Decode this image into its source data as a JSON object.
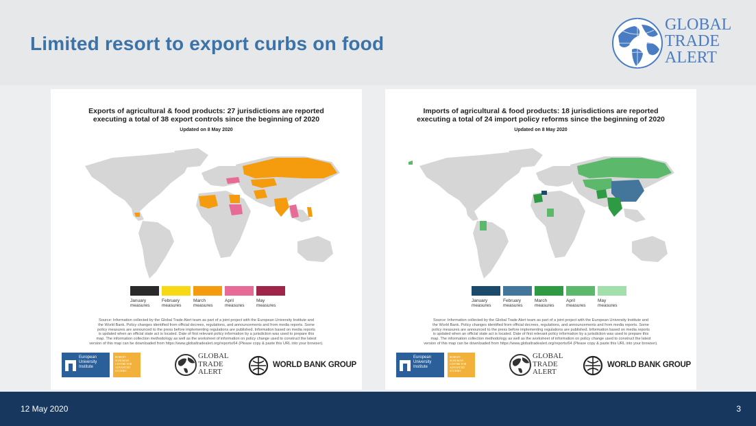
{
  "slide": {
    "title": "Limited resort to export curbs on food",
    "date": "12 May 2020",
    "page_number": "3",
    "brand_lines": [
      "GLOBAL",
      "TRADE",
      "ALERT"
    ]
  },
  "panels": [
    {
      "title_line1": "Exports of agricultural & food products: 27 jurisdictions are reported",
      "title_line2": "executing a total of 38 export controls since the beginning of 2020",
      "updated": "Updated on 8 May 2020",
      "legend": [
        {
          "line1": "January",
          "line2": "measures",
          "color": "#2a2a2a"
        },
        {
          "line1": "February",
          "line2": "measures",
          "color": "#f7d916"
        },
        {
          "line1": "March",
          "line2": "measures",
          "color": "#f59b0e"
        },
        {
          "line1": "April",
          "line2": "measures",
          "color": "#e86a97"
        },
        {
          "line1": "May",
          "line2": "measures",
          "color": "#a0254a"
        }
      ],
      "source_lines": [
        "Source: Information collected by the Global Trade Alert team as part of a joint project with the European University Institute and",
        "the World Bank. Policy changes identified from official decrees, regulations, and announcements and from media reports. Some",
        "policy measures are announced to the press before implementing regulations are published. Information based on media reports",
        "is updated when an official state act is located. Date of first relevant policy information by a jurisdiction was used to prepare this",
        "map. The information collection methodology as well as the worksheet of information on policy change used to construct the latest",
        "version of this map can be downloaded from https://www.globaltradealert.org/reports/64 (Please copy & paste this URL into your browser)."
      ]
    },
    {
      "title_line1": "Imports of agricultural & food products: 18 jurisdictions are reported",
      "title_line2": "executing a total of 24 import policy reforms since the beginning of 2020",
      "updated": "Updated on 8 May 2020",
      "legend": [
        {
          "line1": "January",
          "line2": "measures",
          "color": "#1c4a6b"
        },
        {
          "line1": "February",
          "line2": "measures",
          "color": "#44769b"
        },
        {
          "line1": "March",
          "line2": "measures",
          "color": "#2e9a43"
        },
        {
          "line1": "April",
          "line2": "measures",
          "color": "#5cb86a"
        },
        {
          "line1": "May",
          "line2": "measures",
          "color": "#a3dfab"
        }
      ],
      "source_lines": [
        "Source: Information collected by the Global Trade Alert team as part of a joint project with the European University Institute and",
        "the World Bank. Policy changes identified from official decrees, regulations, and announcements and from media reports. Some",
        "policy measures are announced to the press before implementing regulations are published. Information based on media reports",
        "is updated when an official state act is located. Date of first relevant policy information by a jurisdiction was used to prepare this",
        "map. The information collection methodology as well as the worksheet of information on policy change used to construct the latest",
        "version of this map can be downloaded from https://www.globaltradealert.org/reports/64 (Please copy & paste this URL into your browser)."
      ]
    }
  ],
  "logos": {
    "eui_lines": [
      "European",
      "University",
      "Institute"
    ],
    "schuman_lines": [
      "ROBERT",
      "SCHUMAN",
      "CENTRE FOR",
      "ADVANCED",
      "STUDIES"
    ],
    "gta_lines": [
      "GLOBAL",
      "TRADE",
      "ALERT"
    ],
    "world_bank": "WORLD BANK GROUP"
  },
  "map_colors": {
    "land": "#d6d6d6",
    "export_highlight": "#f59b0e",
    "export_april": "#e86a97",
    "import_green": "#5cb86a",
    "import_blue": "#44769b",
    "import_dark_green": "#2e9a43",
    "import_navy": "#1c4a6b"
  }
}
